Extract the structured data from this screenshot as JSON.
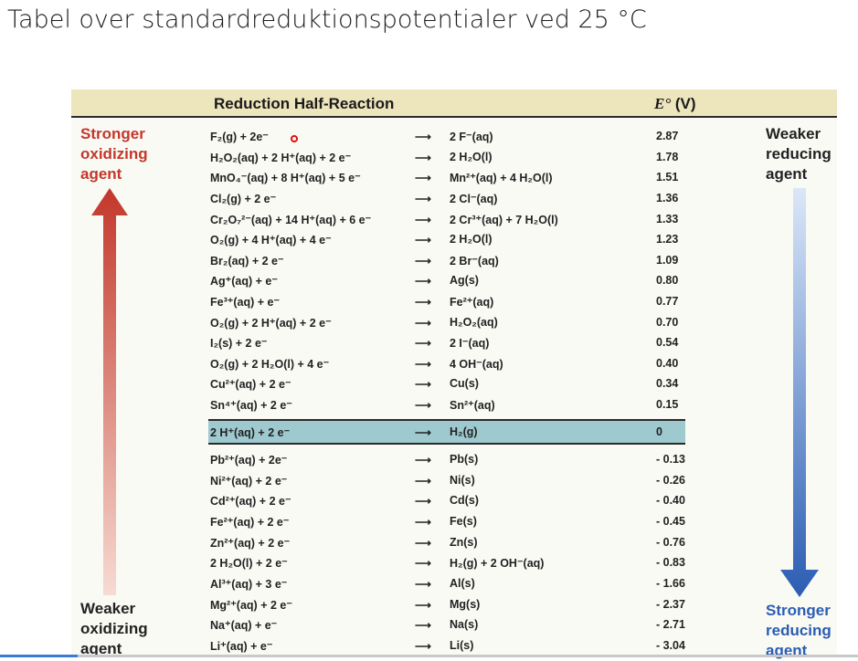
{
  "title": "Tabel over standardreduktionspotentialer ved 25 °C",
  "header": {
    "reaction": "Reduction Half-Reaction",
    "potential_italic": "E°",
    "potential_unit": " (V)"
  },
  "labels": {
    "top_left": [
      "Stronger",
      "oxidizing",
      "agent"
    ],
    "bottom_left": [
      "Weaker",
      "oxidizing",
      "agent"
    ],
    "top_right": [
      "Weaker",
      "reducing",
      "agent"
    ],
    "bottom_right": [
      "Stronger",
      "reducing",
      "agent"
    ]
  },
  "colors": {
    "red_arrow": "#c3372b",
    "blue_arrow": "#2a5db3",
    "highlight": "#9ec9cf",
    "header_bg": "#ede5bc"
  },
  "rows": [
    {
      "left": "F₂(g) + 2e⁻",
      "right": "2 F⁻(aq)",
      "potential": "2.87"
    },
    {
      "left": "H₂O₂(aq) + 2 H⁺(aq) + 2 e⁻",
      "right": "2 H₂O(l)",
      "potential": "1.78"
    },
    {
      "left": "MnO₄⁻(aq) + 8 H⁺(aq) + 5 e⁻",
      "right": "Mn²⁺(aq) + 4 H₂O(l)",
      "potential": "1.51"
    },
    {
      "left": "Cl₂(g) + 2 e⁻",
      "right": "2 Cl⁻(aq)",
      "potential": "1.36"
    },
    {
      "left": "Cr₂O₇²⁻(aq) + 14 H⁺(aq) + 6 e⁻",
      "right": "2 Cr³⁺(aq) + 7 H₂O(l)",
      "potential": "1.33"
    },
    {
      "left": "O₂(g) + 4 H⁺(aq) + 4 e⁻",
      "right": "2 H₂O(l)",
      "potential": "1.23"
    },
    {
      "left": "Br₂(aq) + 2 e⁻",
      "right": "2 Br⁻(aq)",
      "potential": "1.09"
    },
    {
      "left": "Ag⁺(aq) + e⁻",
      "right": "Ag(s)",
      "potential": "0.80"
    },
    {
      "left": "Fe³⁺(aq) + e⁻",
      "right": "Fe²⁺(aq)",
      "potential": "0.77"
    },
    {
      "left": "O₂(g) + 2 H⁺(aq) + 2 e⁻",
      "right": "H₂O₂(aq)",
      "potential": "0.70"
    },
    {
      "left": "I₂(s) + 2 e⁻",
      "right": "2 I⁻(aq)",
      "potential": "0.54"
    },
    {
      "left": "O₂(g) + 2 H₂O(l) + 4 e⁻",
      "right": "4 OH⁻(aq)",
      "potential": "0.40"
    },
    {
      "left": "Cu²⁺(aq) + 2 e⁻",
      "right": "Cu(s)",
      "potential": "0.34"
    },
    {
      "left": "Sn⁴⁺(aq) + 2 e⁻",
      "right": "Sn²⁺(aq)",
      "potential": "0.15"
    },
    {
      "left": "2 H⁺(aq) + 2 e⁻",
      "right": "H₂(g)",
      "potential": "0"
    },
    {
      "left": "Pb²⁺(aq) + 2e⁻",
      "right": "Pb(s)",
      "potential": "- 0.13"
    },
    {
      "left": "Ni²⁺(aq) + 2 e⁻",
      "right": "Ni(s)",
      "potential": "- 0.26"
    },
    {
      "left": "Cd²⁺(aq) + 2 e⁻",
      "right": "Cd(s)",
      "potential": "- 0.40"
    },
    {
      "left": "Fe²⁺(aq) + 2 e⁻",
      "right": "Fe(s)",
      "potential": "- 0.45"
    },
    {
      "left": "Zn²⁺(aq) + 2 e⁻",
      "right": "Zn(s)",
      "potential": "- 0.76"
    },
    {
      "left": "2 H₂O(l) + 2 e⁻",
      "right": "H₂(g) + 2 OH⁻(aq)",
      "potential": "- 0.83"
    },
    {
      "left": "Al³⁺(aq) + 3 e⁻",
      "right": "Al(s)",
      "potential": "- 1.66"
    },
    {
      "left": "Mg²⁺(aq) + 2 e⁻",
      "right": "Mg(s)",
      "potential": "- 2.37"
    },
    {
      "left": "Na⁺(aq) + e⁻",
      "right": "Na(s)",
      "potential": "- 2.71"
    },
    {
      "left": "Li⁺(aq) + e⁻",
      "right": "Li(s)",
      "potential": "- 3.04"
    }
  ]
}
